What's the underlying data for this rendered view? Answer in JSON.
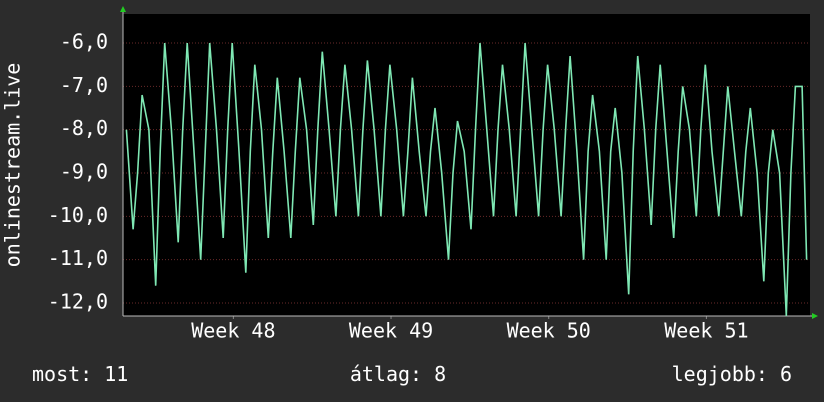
{
  "chart_data": {
    "type": "line",
    "y_label": "onlinestream.live",
    "xlim": [
      0,
      30.5
    ],
    "ylim": [
      -12.3,
      -5.33
    ],
    "yticks": [
      {
        "value": -6,
        "label": "-6,0"
      },
      {
        "value": -7,
        "label": "-7,0"
      },
      {
        "value": -8,
        "label": "-8,0"
      },
      {
        "value": -9,
        "label": "-9,0"
      },
      {
        "value": -10,
        "label": "-10,0"
      },
      {
        "value": -11,
        "label": "-11,0"
      },
      {
        "value": -12,
        "label": "-12,0"
      }
    ],
    "xticks": [
      {
        "value": 4.9,
        "label": "Week 48"
      },
      {
        "value": 11.9,
        "label": "Week 49"
      },
      {
        "value": 18.9,
        "label": "Week 50"
      },
      {
        "value": 25.9,
        "label": "Week 51"
      }
    ],
    "grid": true,
    "series": [
      {
        "color": "#7fe8b4",
        "x": [
          0.15,
          0.45,
          0.65,
          0.85,
          1.15,
          1.45,
          1.65,
          1.85,
          2.15,
          2.45,
          2.65,
          2.85,
          3.15,
          3.45,
          3.65,
          3.85,
          4.15,
          4.45,
          4.65,
          4.85,
          5.15,
          5.45,
          5.65,
          5.85,
          6.15,
          6.45,
          6.65,
          6.85,
          7.15,
          7.45,
          7.65,
          7.85,
          8.15,
          8.45,
          8.65,
          8.85,
          9.15,
          9.45,
          9.65,
          9.85,
          10.15,
          10.45,
          10.65,
          10.85,
          11.15,
          11.45,
          11.65,
          11.85,
          12.15,
          12.45,
          12.65,
          12.85,
          13.15,
          13.45,
          13.65,
          13.85,
          14.15,
          14.45,
          14.65,
          14.85,
          15.15,
          15.45,
          15.65,
          15.85,
          16.15,
          16.45,
          16.65,
          16.85,
          17.15,
          17.45,
          17.65,
          17.85,
          18.15,
          18.45,
          18.65,
          18.85,
          19.15,
          19.45,
          19.65,
          19.85,
          20.15,
          20.45,
          20.65,
          20.85,
          21.15,
          21.45,
          21.65,
          21.85,
          22.15,
          22.45,
          22.65,
          22.85,
          23.15,
          23.45,
          23.65,
          23.85,
          24.15,
          24.45,
          24.65,
          24.85,
          25.15,
          25.45,
          25.65,
          25.85,
          26.15,
          26.45,
          26.65,
          26.85,
          27.15,
          27.45,
          27.65,
          27.85,
          28.15,
          28.45,
          28.65,
          28.85,
          29.15,
          29.45,
          29.65,
          29.85,
          30.15,
          30.35
        ],
        "values": [
          -8,
          -10.3,
          -9,
          -7.2,
          -8,
          -11.6,
          -8.5,
          -6,
          -8,
          -10.6,
          -8,
          -6,
          -8.5,
          -11,
          -8.5,
          -6,
          -8,
          -10.5,
          -8,
          -6,
          -8.5,
          -11.3,
          -8.5,
          -6.5,
          -8,
          -10.5,
          -8.5,
          -6.8,
          -8.5,
          -10.5,
          -8.5,
          -6.8,
          -8,
          -10.2,
          -8,
          -6.2,
          -8,
          -10,
          -8,
          -6.5,
          -8,
          -10,
          -8,
          -6.4,
          -8,
          -10,
          -8,
          -6.5,
          -8,
          -10,
          -8.5,
          -6.8,
          -8.5,
          -10,
          -8.5,
          -7.5,
          -9,
          -11,
          -9,
          -7.8,
          -8.5,
          -10.3,
          -8,
          -6,
          -8,
          -10,
          -8,
          -6.5,
          -8,
          -10,
          -8,
          -6,
          -8,
          -10,
          -8,
          -6.5,
          -8,
          -10,
          -8,
          -6.3,
          -8.5,
          -11,
          -8.5,
          -7.2,
          -8.5,
          -11,
          -8.5,
          -7.5,
          -9,
          -11.8,
          -8.5,
          -6.3,
          -8,
          -10.2,
          -8,
          -6.5,
          -8.5,
          -10.5,
          -8.5,
          -7,
          -8,
          -10,
          -8,
          -6.5,
          -8.5,
          -10,
          -8.5,
          -7,
          -8.5,
          -10,
          -8.5,
          -7.5,
          -9,
          -11.5,
          -9,
          -8,
          -9,
          -12.3,
          -9,
          -7,
          -7,
          -11
        ]
      }
    ],
    "stats": [
      {
        "label": "most:",
        "value": 11
      },
      {
        "label": "átlag:",
        "value": 8
      },
      {
        "label": "legjobb:",
        "value": 6
      }
    ]
  }
}
